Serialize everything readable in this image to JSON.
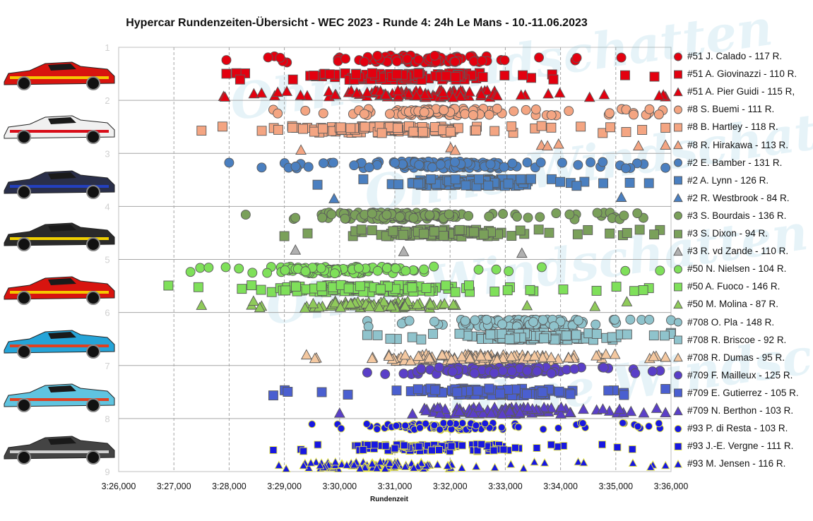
{
  "chart_data": {
    "type": "scatter",
    "title": "Hypercar Rundenzeiten-Übersicht - WEC 2023 - Runde 4: 24h Le Mans - 10.-11.06.2023",
    "xlabel": "Rundenzeit",
    "ylabel": "",
    "x_tick_labels": [
      "3:26,000",
      "3:27,000",
      "3:28,000",
      "3:29,000",
      "3:30,000",
      "3:31,000",
      "3:32,000",
      "3:33,000",
      "3:34,000",
      "3:35,000",
      "3:36,000"
    ],
    "y_tick_labels": [
      "1",
      "2",
      "3",
      "4",
      "5",
      "6",
      "7",
      "8",
      "9"
    ],
    "xlim": [
      206,
      216
    ],
    "ylim": [
      1,
      9
    ],
    "y_inverted": true,
    "grid": true,
    "legend_position": "right",
    "watermark": "Ohne Windschatten",
    "series": [
      {
        "name": "#51 J. Calado - 117 R.",
        "color": "#e3000f",
        "marker": "circle",
        "y": 1.22,
        "x_range": [
          207.95,
          215.1
        ],
        "x_center": 211.4,
        "spread": 1.6
      },
      {
        "name": "#51 A. Giovinazzi - 110 R.",
        "color": "#e3000f",
        "marker": "square",
        "y": 1.55,
        "x_range": [
          207.95,
          215.7
        ],
        "x_center": 211.3,
        "spread": 1.8
      },
      {
        "name": "#51 A. Pier Guidi - 115 R,",
        "color": "#e3000f",
        "marker": "triangle",
        "y": 1.88,
        "x_range": [
          207.9,
          215.9
        ],
        "x_center": 211.4,
        "spread": 1.9
      },
      {
        "name": "#8 S. Buemi - 111 R.",
        "color": "#f4a582",
        "marker": "circle",
        "y": 2.22,
        "x_range": [
          208.8,
          215.85
        ],
        "x_center": 211.5,
        "spread": 1.4
      },
      {
        "name": "#8 B. Hartley - 118 R.",
        "color": "#f4a582",
        "marker": "square",
        "y": 2.55,
        "x_range": [
          207.5,
          215.9
        ],
        "x_center": 210.8,
        "spread": 2.0
      },
      {
        "name": "#8 R. Hirakawa - 113 R.",
        "color": "#f4a582",
        "marker": "triangle",
        "y": 2.88,
        "x_range": [
          209.3,
          215.9
        ],
        "x_center": 212.5,
        "spread": 1.6
      },
      {
        "name": "#2 E. Bamber - 131 R.",
        "color": "#4a7fc0",
        "marker": "circle",
        "y": 3.22,
        "x_range": [
          208.0,
          215.9
        ],
        "x_center": 212.0,
        "spread": 1.5
      },
      {
        "name": "#2 A. Lynn - 126 R.",
        "color": "#4a7fc0",
        "marker": "square",
        "y": 3.55,
        "x_range": [
          209.6,
          215.6
        ],
        "x_center": 212.5,
        "spread": 1.4
      },
      {
        "name": "#2 R. Westbrook - 84 R.",
        "color": "#4a7fc0",
        "marker": "triangle",
        "y": 3.85,
        "x_range": [
          209.9,
          215.1
        ],
        "x_center": 212.3,
        "spread": 1.2
      },
      {
        "name": "#3 S. Bourdais - 136 R.",
        "color": "#7aa05a",
        "marker": "circle",
        "y": 4.18,
        "x_range": [
          208.3,
          215.5
        ],
        "x_center": 211.0,
        "spread": 1.5
      },
      {
        "name": "#3 S. Dixon - 94 R.",
        "color": "#7aa05a",
        "marker": "square",
        "y": 4.5,
        "x_range": [
          209.0,
          215.8
        ],
        "x_center": 211.8,
        "spread": 1.6
      },
      {
        "name": "#3 R. vd Zande - 110 R.",
        "color": "#b0b0b0",
        "marker": "triangle",
        "y": 4.85,
        "x_range": [
          209.2,
          213.3
        ],
        "x_center": 210.8,
        "spread": 1.0
      },
      {
        "name": "#50 N. Nielsen - 104 R.",
        "color": "#7fe05a",
        "marker": "circle",
        "y": 5.2,
        "x_range": [
          207.3,
          215.8
        ],
        "x_center": 210.2,
        "spread": 1.6
      },
      {
        "name": "#50 A. Fuoco - 146 R.",
        "color": "#7fe05a",
        "marker": "square",
        "y": 5.55,
        "x_range": [
          206.9,
          215.6
        ],
        "x_center": 210.4,
        "spread": 1.9
      },
      {
        "name": "#50 M. Molina - 87 R.",
        "color": "#8fca5a",
        "marker": "triangle",
        "y": 5.85,
        "x_range": [
          207.5,
          215.2
        ],
        "x_center": 210.8,
        "spread": 1.7
      },
      {
        "name": "#708 O. Pla - 148 R.",
        "color": "#8fc3cc",
        "marker": "circle",
        "y": 6.2,
        "x_range": [
          210.5,
          216.0
        ],
        "x_center": 213.3,
        "spread": 1.4
      },
      {
        "name": "#708 R. Briscoe - 92 R.",
        "color": "#8fc3cc",
        "marker": "square",
        "y": 6.45,
        "x_range": [
          210.5,
          216.0
        ],
        "x_center": 213.5,
        "spread": 1.4
      },
      {
        "name": "#708 R. Dumas - 95 R.",
        "color": "#f4c8a0",
        "marker": "triangle",
        "y": 6.85,
        "x_range": [
          209.4,
          215.9
        ],
        "x_center": 212.5,
        "spread": 1.7
      },
      {
        "name": "#709 F. Mailleux - 125 R.",
        "color": "#5a3fc8",
        "marker": "circle",
        "y": 7.1,
        "x_range": [
          210.5,
          215.8
        ],
        "x_center": 213.0,
        "spread": 1.5
      },
      {
        "name": "#709 E. Gutierrez - 105 R.",
        "color": "#4a5fd0",
        "marker": "square",
        "y": 7.5,
        "x_range": [
          208.8,
          215.9
        ],
        "x_center": 212.8,
        "spread": 1.6
      },
      {
        "name": "#709 N. Berthon - 103 R.",
        "color": "#5a3fc8",
        "marker": "triangle",
        "y": 7.85,
        "x_range": [
          210.0,
          215.9
        ],
        "x_center": 213.0,
        "spread": 1.6
      },
      {
        "name": "#93 P. di Resta - 103 R.",
        "color": "#1818e0",
        "marker": "circle",
        "y": 8.15,
        "x_range": [
          209.5,
          215.8
        ],
        "x_center": 212.0,
        "spread": 1.5
      },
      {
        "name": "#93 J.-E. Vergne - 111 R.",
        "color": "#1818e0",
        "marker": "square",
        "y": 8.55,
        "x_range": [
          208.8,
          215.3
        ],
        "x_center": 211.7,
        "spread": 1.5
      },
      {
        "name": "#93 M. Jensen - 116 R.",
        "color": "#1818e0",
        "marker": "triangle",
        "y": 8.88,
        "x_range": [
          208.9,
          215.9
        ],
        "x_center": 210.8,
        "spread": 1.5
      }
    ]
  },
  "cars": [
    {
      "name": "ferrari-499p-51",
      "body": "#d8140f",
      "accent": "#f5c800"
    },
    {
      "name": "toyota-gr010-8",
      "body": "#f0f0f0",
      "accent": "#d80c18"
    },
    {
      "name": "cadillac-v-lmdh-2",
      "body": "#2a2f4a",
      "accent": "#2340c0"
    },
    {
      "name": "cadillac-v-lmdh-3",
      "body": "#2a2a2a",
      "accent": "#f0d000"
    },
    {
      "name": "ferrari-499p-50",
      "body": "#d8140f",
      "accent": "#f5c800"
    },
    {
      "name": "glickenhaus-708",
      "body": "#25a4d8",
      "accent": "#e04020"
    },
    {
      "name": "glickenhaus-709",
      "body": "#5fc4e0",
      "accent": "#e04020"
    },
    {
      "name": "vanwall-93",
      "body": "#444444",
      "accent": "#d0d0d0"
    }
  ]
}
